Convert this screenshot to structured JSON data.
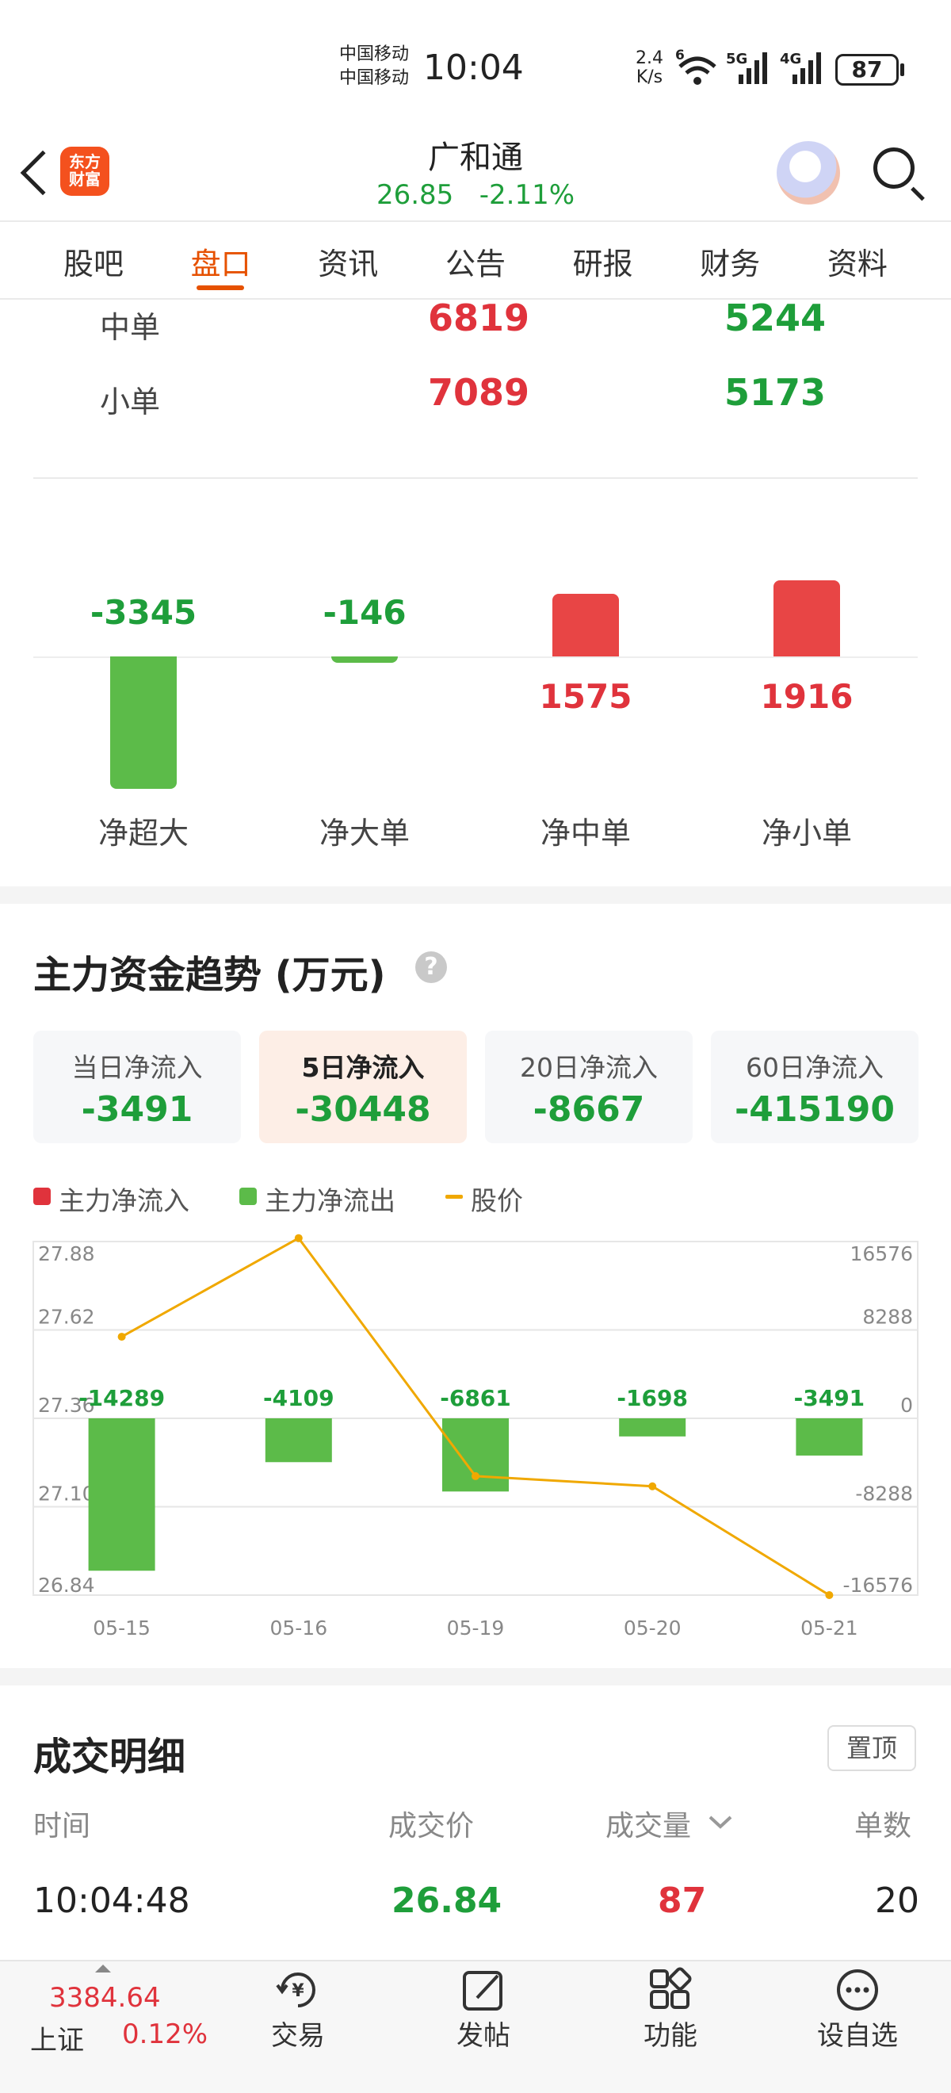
{
  "status_bar": {
    "carrier1": "中国移动",
    "carrier2": "中国移动",
    "time": "10:04",
    "net_speed_value": "2.4",
    "net_speed_unit": "K/s",
    "wifi_badge": "6",
    "sig1": "5G",
    "sig2": "4G",
    "battery": "87"
  },
  "header": {
    "logo_text": "东方财富",
    "stock_name": "广和通",
    "price": "26.85",
    "change": "-2.11%"
  },
  "tabs": [
    "股吧",
    "盘口",
    "资讯",
    "公告",
    "研报",
    "财务",
    "资料"
  ],
  "active_tab_index": 1,
  "order_rows": [
    {
      "label": "中单",
      "in": "6819",
      "out": "5244"
    },
    {
      "label": "小单",
      "in": "7089",
      "out": "5173"
    }
  ],
  "net_flow_bars": [
    {
      "label": "净超大",
      "value": -3345,
      "display": "-3345"
    },
    {
      "label": "净大单",
      "value": -146,
      "display": "-146"
    },
    {
      "label": "净中单",
      "value": 1575,
      "display": "1575"
    },
    {
      "label": "净小单",
      "value": 1916,
      "display": "1916"
    }
  ],
  "trend": {
    "title": "主力资金趋势 (万元)",
    "help_icon": "?",
    "cards": [
      {
        "label": "当日净流入",
        "value": "-3491"
      },
      {
        "label": "5日净流入",
        "value": "-30448"
      },
      {
        "label": "20日净流入",
        "value": "-8667"
      },
      {
        "label": "60日净流入",
        "value": "-415190"
      }
    ],
    "active_card_index": 1,
    "legend": [
      "主力净流入",
      "主力净流出",
      "股价"
    ]
  },
  "chart_data": {
    "type": "bar",
    "categories": [
      "05-15",
      "05-16",
      "05-19",
      "05-20",
      "05-21"
    ],
    "series": [
      {
        "name": "主力净流出",
        "values": [
          -14289,
          -4109,
          -6861,
          -1698,
          -3491
        ],
        "color": "#5cbb49"
      },
      {
        "name": "股价",
        "values": [
          27.6,
          27.89,
          27.19,
          27.16,
          26.84
        ],
        "color": "#f0a800",
        "type": "line",
        "axis": "left"
      }
    ],
    "left_axis_ticks": [
      "27.88",
      "27.62",
      "27.36",
      "27.10",
      "26.84"
    ],
    "left_ylim": [
      26.84,
      27.88
    ],
    "right_axis_ticks": [
      "16576",
      "8288",
      "0",
      "-8288",
      "-16576"
    ],
    "right_ylim": [
      -16576,
      16576
    ],
    "bar_labels": [
      "-14289",
      "-4109",
      "-6861",
      "-1698",
      "-3491"
    ]
  },
  "details": {
    "title": "成交明细",
    "pin_label": "置顶",
    "columns": [
      "时间",
      "成交价",
      "成交量",
      "单数"
    ],
    "rows": [
      {
        "time": "10:04:48",
        "price": "26.84",
        "volume": "87",
        "count": "20"
      }
    ]
  },
  "bottom_nav": {
    "index_value": "3384.64",
    "index_name": "上证",
    "index_change": "0.12%",
    "items": [
      "交易",
      "发帖",
      "功能",
      "设自选"
    ]
  },
  "colors": {
    "up": "#e0333c",
    "down": "#1e9e3a",
    "bar_down": "#5cbb49",
    "bar_up": "#e84545",
    "accent": "#e65100",
    "price_line": "#f0a800"
  }
}
